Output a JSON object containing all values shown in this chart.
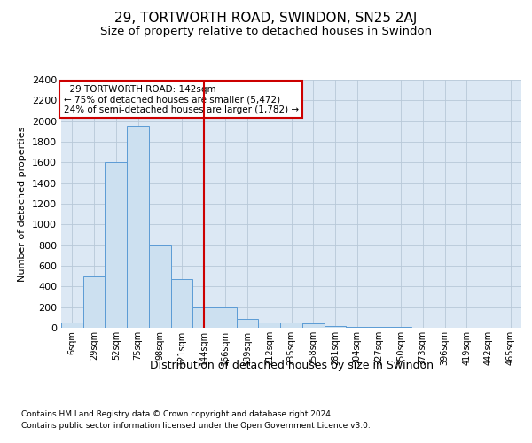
{
  "title1": "29, TORTWORTH ROAD, SWINDON, SN25 2AJ",
  "title2": "Size of property relative to detached houses in Swindon",
  "xlabel": "Distribution of detached houses by size in Swindon",
  "ylabel": "Number of detached properties",
  "footnote1": "Contains HM Land Registry data © Crown copyright and database right 2024.",
  "footnote2": "Contains public sector information licensed under the Open Government Licence v3.0.",
  "annotation_line1": "  29 TORTWORTH ROAD: 142sqm",
  "annotation_line2": "← 75% of detached houses are smaller (5,472)",
  "annotation_line3": "24% of semi-detached houses are larger (1,782) →",
  "bar_labels": [
    "6sqm",
    "29sqm",
    "52sqm",
    "75sqm",
    "98sqm",
    "121sqm",
    "144sqm",
    "166sqm",
    "189sqm",
    "212sqm",
    "235sqm",
    "258sqm",
    "281sqm",
    "304sqm",
    "327sqm",
    "350sqm",
    "373sqm",
    "396sqm",
    "419sqm",
    "442sqm",
    "465sqm"
  ],
  "bar_values": [
    55,
    500,
    1600,
    1950,
    800,
    470,
    200,
    200,
    90,
    50,
    50,
    40,
    20,
    10,
    5,
    5,
    0,
    0,
    0,
    0,
    0
  ],
  "bar_color": "#cce0f0",
  "bar_edge_color": "#5b9bd5",
  "vline_x": 6,
  "vline_color": "#cc0000",
  "ylim": [
    0,
    2400
  ],
  "yticks": [
    0,
    200,
    400,
    600,
    800,
    1000,
    1200,
    1400,
    1600,
    1800,
    2000,
    2200,
    2400
  ],
  "grid_color": "#b8c8d8",
  "background_color": "#dce8f4",
  "fig_background": "#ffffff",
  "annotation_box_color": "#ffffff",
  "annotation_box_edge": "#cc0000",
  "title1_fontsize": 11,
  "title2_fontsize": 9.5
}
